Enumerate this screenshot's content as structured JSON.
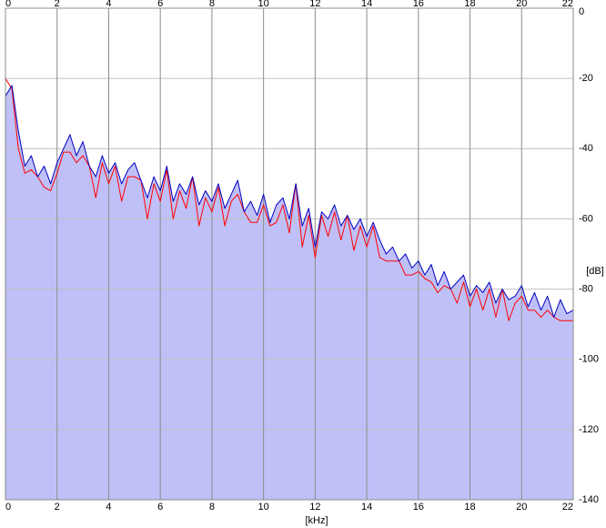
{
  "chart_data": {
    "type": "line",
    "x_label": "[kHz]",
    "y_label": "[dB]",
    "xlim": [
      0,
      22
    ],
    "xticks": [
      0,
      2,
      4,
      6,
      8,
      10,
      12,
      14,
      16,
      18,
      20,
      22
    ],
    "ylim": [
      -140,
      0
    ],
    "yticks": [
      0,
      -20,
      -40,
      -60,
      -80,
      -100,
      -120,
      -140
    ],
    "grid": true,
    "fill_color": "#c0c0f8",
    "x": [
      0,
      0.25,
      0.5,
      0.75,
      1,
      1.25,
      1.5,
      1.75,
      2,
      2.25,
      2.5,
      2.75,
      3,
      3.25,
      3.5,
      3.75,
      4,
      4.25,
      4.5,
      4.75,
      5,
      5.25,
      5.5,
      5.75,
      6,
      6.25,
      6.5,
      6.75,
      7,
      7.25,
      7.5,
      7.75,
      8,
      8.25,
      8.5,
      8.75,
      9,
      9.25,
      9.5,
      9.75,
      10,
      10.25,
      10.5,
      10.75,
      11,
      11.25,
      11.5,
      11.75,
      12,
      12.25,
      12.5,
      12.75,
      13,
      13.25,
      13.5,
      13.75,
      14,
      14.25,
      14.5,
      14.75,
      15,
      15.25,
      15.5,
      15.75,
      16,
      16.25,
      16.5,
      16.75,
      17,
      17.25,
      17.5,
      17.75,
      18,
      18.25,
      18.5,
      18.75,
      19,
      19.25,
      19.5,
      19.75,
      20,
      20.25,
      20.5,
      20.75,
      21,
      21.25,
      21.5,
      21.75,
      22
    ],
    "series": [
      {
        "color": "#ff0000",
        "values": [
          -20,
          -23,
          -40,
          -47,
          -46,
          -48,
          -51,
          -52,
          -47,
          -41,
          -41,
          -44,
          -42,
          -45,
          -54,
          -44,
          -50,
          -45,
          -55,
          -48,
          -48,
          -49,
          -60,
          -50,
          -55,
          -46,
          -60,
          -52,
          -57,
          -48,
          -62,
          -54,
          -58,
          -51,
          -62,
          -55,
          -53,
          -58,
          -61,
          -61,
          -56,
          -62,
          -61,
          -56,
          -64,
          -50,
          -68,
          -59,
          -71,
          -59,
          -65,
          -58,
          -66,
          -59,
          -69,
          -62,
          -68,
          -62,
          -71,
          -72,
          -72,
          -72,
          -76,
          -76,
          -75,
          -77,
          -78,
          -81,
          -79,
          -80,
          -84,
          -78,
          -85,
          -80,
          -86,
          -80,
          -88,
          -80,
          -89,
          -84,
          -82,
          -86,
          -86,
          -88,
          -86,
          -88,
          -89,
          -89,
          -89
        ]
      },
      {
        "color": "#0000c0",
        "values": [
          -25,
          -22,
          -35,
          -45,
          -42,
          -48,
          -45,
          -50,
          -44,
          -40,
          -36,
          -42,
          -38,
          -45,
          -48,
          -42,
          -47,
          -44,
          -50,
          -46,
          -44,
          -49,
          -54,
          -48,
          -52,
          -45,
          -55,
          -50,
          -53,
          -48,
          -56,
          -52,
          -55,
          -50,
          -57,
          -53,
          -49,
          -58,
          -55,
          -59,
          -53,
          -61,
          -56,
          -54,
          -60,
          -50,
          -62,
          -57,
          -68,
          -58,
          -60,
          -56,
          -62,
          -59,
          -63,
          -60,
          -65,
          -61,
          -66,
          -70,
          -68,
          -72,
          -70,
          -74,
          -72,
          -76,
          -73,
          -79,
          -75,
          -80,
          -78,
          -76,
          -82,
          -79,
          -81,
          -78,
          -84,
          -80,
          -83,
          -82,
          -79,
          -85,
          -81,
          -86,
          -82,
          -88,
          -83,
          -87,
          -86
        ]
      }
    ]
  }
}
